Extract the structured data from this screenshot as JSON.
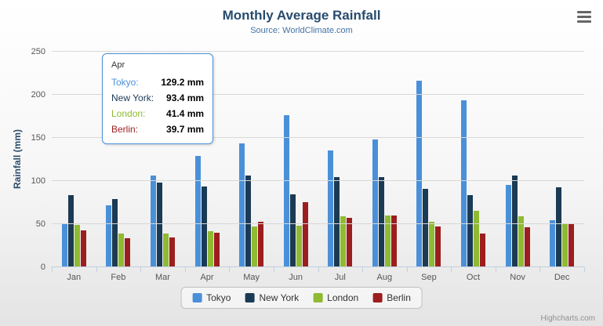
{
  "credits": "Highcharts.com",
  "icons": {
    "menu": "hamburger-icon"
  },
  "tooltip": {
    "header": "Apr",
    "border_color": "#4a90d9",
    "rows": [
      {
        "label": "Tokyo:",
        "value": "129.2 mm",
        "color": "#4a90d9"
      },
      {
        "label": "New York:",
        "value": "93.4 mm",
        "color": "#1b3a54"
      },
      {
        "label": "London:",
        "value": "41.4 mm",
        "color": "#8fba32"
      },
      {
        "label": "Berlin:",
        "value": "39.7 mm",
        "color": "#9c1e1e"
      }
    ]
  },
  "chart_data": {
    "type": "bar",
    "title": "Monthly Average Rainfall",
    "subtitle": "Source: WorldClimate.com",
    "xlabel": "",
    "ylabel": "Rainfall (mm)",
    "ylim": [
      0,
      250
    ],
    "yticks": [
      0,
      50,
      100,
      150,
      200,
      250
    ],
    "grid": true,
    "legend_position": "bottom",
    "categories": [
      "Jan",
      "Feb",
      "Mar",
      "Apr",
      "May",
      "Jun",
      "Jul",
      "Aug",
      "Sep",
      "Oct",
      "Nov",
      "Dec"
    ],
    "series": [
      {
        "name": "Tokyo",
        "color": "#4a90d9",
        "values": [
          49.9,
          71.5,
          106.4,
          129.2,
          144.0,
          176.0,
          135.6,
          148.5,
          216.4,
          194.1,
          95.6,
          54.4
        ]
      },
      {
        "name": "New York",
        "color": "#1b3a54",
        "values": [
          83.6,
          78.8,
          98.5,
          93.4,
          106.0,
          84.5,
          105.0,
          104.3,
          91.2,
          83.5,
          106.6,
          92.3
        ]
      },
      {
        "name": "London",
        "color": "#8fba32",
        "values": [
          48.9,
          38.8,
          39.3,
          41.4,
          47.0,
          48.3,
          59.0,
          59.6,
          52.4,
          65.2,
          59.3,
          51.2
        ]
      },
      {
        "name": "Berlin",
        "color": "#9c1e1e",
        "values": [
          42.4,
          33.2,
          34.5,
          39.7,
          52.6,
          75.5,
          57.4,
          60.4,
          47.6,
          39.1,
          46.8,
          51.1
        ]
      }
    ]
  }
}
